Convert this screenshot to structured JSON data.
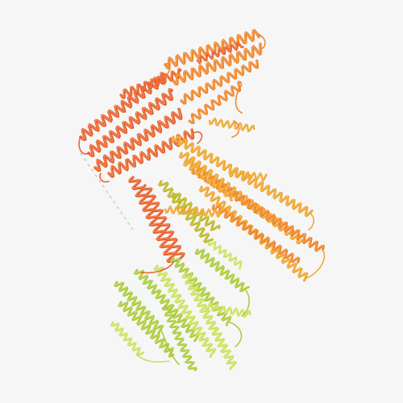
{
  "image": {
    "subject": "protein-ribbon-structure",
    "background_color": "#f6f6f6",
    "palette": {
      "red_orange": "#e8561c",
      "orange": "#ef7d1a",
      "amber": "#eea021",
      "olive": "#b9b41a",
      "lime": "#a6c92d",
      "light_lime": "#c8df52",
      "dashed_link": "#c9c9c9"
    }
  }
}
